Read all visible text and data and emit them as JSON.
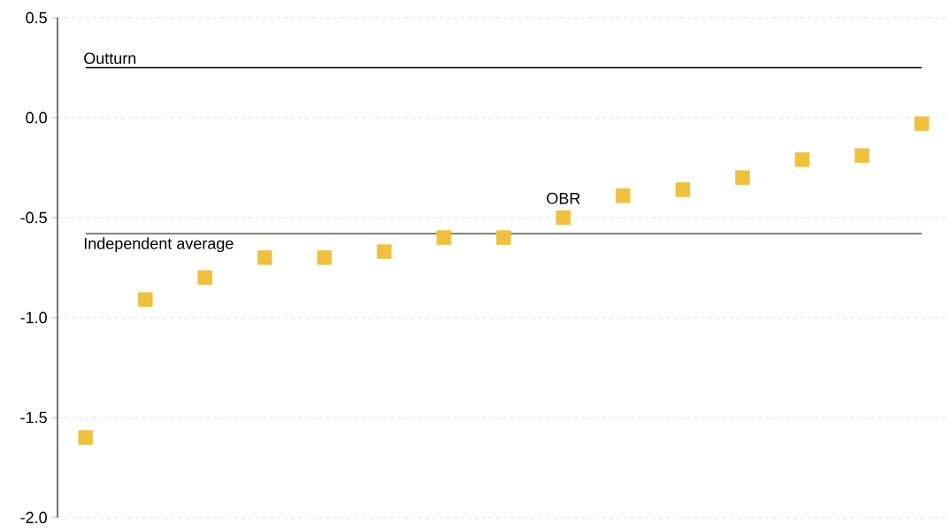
{
  "chart_data": {
    "type": "scatter",
    "categories": [
      null,
      null,
      null,
      null,
      null,
      null,
      null,
      null,
      null,
      null,
      null,
      null,
      null,
      null,
      null
    ],
    "series": [
      {
        "color": "#efc13f",
        "values": [
          -1.6,
          -0.91,
          -0.8,
          -0.7,
          -0.7,
          -0.67,
          -0.6,
          -0.6,
          -0.5,
          -0.39,
          -0.36,
          -0.3,
          -0.21,
          -0.19,
          -0.03
        ]
      }
    ],
    "marker": "square",
    "ylim": [
      -2.0,
      0.5
    ],
    "yticks": [
      {
        "value": -2.0,
        "label": "-2.0"
      },
      {
        "value": -1.5,
        "label": "-1.5"
      },
      {
        "value": -1.0,
        "label": "-1.0"
      },
      {
        "value": -0.5,
        "label": "-0.5"
      },
      {
        "value": 0.0,
        "label": "0.0"
      },
      {
        "value": 0.5,
        "label": "0.5"
      }
    ],
    "grid": "y",
    "tick_labels": "y",
    "ref_lines": [
      {
        "axis": "y",
        "value": 0.25,
        "label": "Outturn",
        "color": "#000000"
      },
      {
        "axis": "y",
        "value": -0.58,
        "label": "Independent average",
        "color": "#1e4a1e"
      }
    ],
    "annotations": [
      {
        "text": "OBR",
        "y": -0.5
      }
    ]
  }
}
